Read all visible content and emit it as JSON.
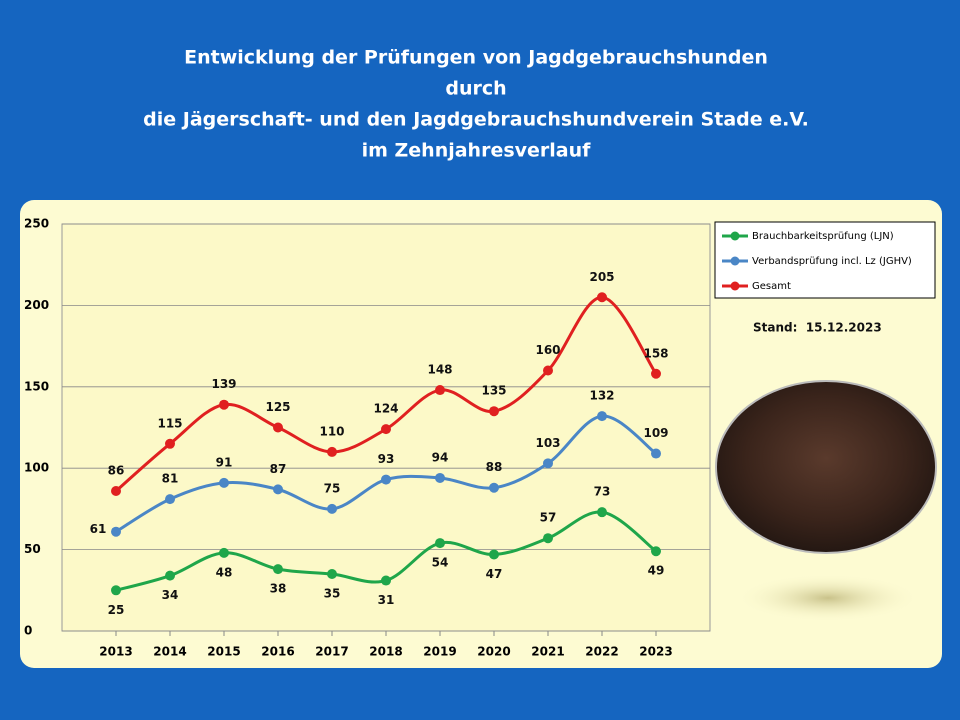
{
  "chart_data": {
    "type": "line",
    "title": [
      "Entwicklung der Prüfungen von Jagdgebrauchshunden",
      "durch",
      "die Jägerschaft- und den Jagdgebrauchshundverein Stade e.V.",
      "im Zehnjahresverlauf"
    ],
    "annotation": "Stand:  15.12.2023",
    "categories": [
      "2013",
      "2014",
      "2015",
      "2016",
      "2017",
      "2018",
      "2019",
      "2020",
      "2021",
      "2022",
      "2023"
    ],
    "series": [
      {
        "name": "Brauchbarkeitsprüfung (LJN)",
        "color": "#1fa64a",
        "values": [
          25,
          34,
          48,
          38,
          35,
          31,
          54,
          47,
          57,
          73,
          49
        ]
      },
      {
        "name": "Verbandsprüfung incl. Lz (JGHV)",
        "color": "#4a86c6",
        "values": [
          61,
          81,
          91,
          87,
          75,
          93,
          94,
          88,
          103,
          132,
          109
        ]
      },
      {
        "name": "Gesamt",
        "color": "#e02020",
        "values": [
          86,
          115,
          139,
          125,
          110,
          124,
          148,
          135,
          160,
          205,
          158
        ]
      }
    ],
    "ylim": [
      0,
      250
    ],
    "yticks": [
      0,
      50,
      100,
      150,
      200,
      250
    ],
    "grid": true,
    "legend": "right"
  }
}
